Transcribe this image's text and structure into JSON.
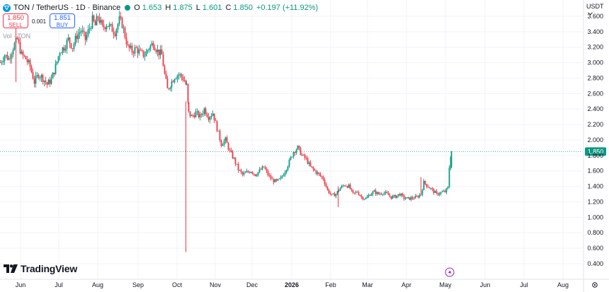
{
  "header": {
    "symbol": "TON / TetherUS · 1D · Binance",
    "open_label": "O",
    "open": "1.653",
    "high_label": "H",
    "high": "1.875",
    "low_label": "L",
    "low": "1.601",
    "close_label": "C",
    "close": "1.850",
    "change": "+0.197 (+11.92%)"
  },
  "trade": {
    "sell_price": "1.850",
    "sell_label": "SELL",
    "spread": "0.001",
    "buy_price": "1.851",
    "buy_label": "BUY"
  },
  "volume_label": "Vol · TON",
  "currency_label": "USDT",
  "brand": "TradingView",
  "colors": {
    "up": "#089981",
    "down": "#f23645",
    "grid": "#f0f3fa",
    "last_price": "#089981"
  },
  "chart_data": {
    "type": "candlestick",
    "title": "TON / TetherUS · 1D · Binance",
    "ylim": [
      0.3,
      3.7
    ],
    "yticks": [
      3.6,
      3.4,
      3.2,
      3.0,
      2.8,
      2.6,
      2.4,
      2.2,
      2.0,
      1.8,
      1.6,
      1.4,
      1.2,
      1.0,
      0.8,
      0.6,
      0.4
    ],
    "ytick_labels": [
      "3.600",
      "3.400",
      "3.200",
      "3.000",
      "2.800",
      "2.600",
      "2.400",
      "2.200",
      "2.000",
      "1.800",
      "1.600",
      "1.400",
      "1.200",
      "1.000",
      "0.800",
      "0.600",
      "0.400"
    ],
    "xticks": [
      "Jun",
      "Jul",
      "Aug",
      "Sep",
      "Oct",
      "Nov",
      "Dec",
      "2026",
      "Feb",
      "Mar",
      "Apr",
      "May",
      "Jun",
      "Jul",
      "Aug"
    ],
    "last_price": 1.85,
    "last_price_label": "1.850",
    "anchors": [
      [
        0,
        3.0
      ],
      [
        6,
        3.1
      ],
      [
        12,
        3.05
      ],
      [
        18,
        3.2
      ],
      [
        24,
        3.3
      ],
      [
        30,
        3.1
      ],
      [
        36,
        3.05
      ],
      [
        42,
        2.95
      ],
      [
        48,
        2.75
      ],
      [
        54,
        2.85
      ],
      [
        60,
        2.8
      ],
      [
        66,
        2.72
      ],
      [
        72,
        2.78
      ],
      [
        78,
        2.95
      ],
      [
        84,
        3.15
      ],
      [
        90,
        3.2
      ],
      [
        96,
        3.3
      ],
      [
        102,
        3.2
      ],
      [
        108,
        3.35
      ],
      [
        114,
        3.42
      ],
      [
        120,
        3.3
      ],
      [
        126,
        3.45
      ],
      [
        130,
        3.55
      ],
      [
        134,
        3.48
      ],
      [
        138,
        3.6
      ],
      [
        144,
        3.45
      ],
      [
        150,
        3.5
      ],
      [
        156,
        3.45
      ],
      [
        162,
        3.4
      ],
      [
        168,
        3.55
      ],
      [
        172,
        3.5
      ],
      [
        176,
        3.35
      ],
      [
        180,
        3.2
      ],
      [
        186,
        3.15
      ],
      [
        192,
        3.18
      ],
      [
        198,
        3.12
      ],
      [
        204,
        3.1
      ],
      [
        210,
        3.2
      ],
      [
        216,
        3.25
      ],
      [
        222,
        3.15
      ],
      [
        228,
        3.1
      ],
      [
        232,
        2.85
      ],
      [
        236,
        2.65
      ],
      [
        240,
        2.72
      ],
      [
        246,
        2.82
      ],
      [
        252,
        2.85
      ],
      [
        258,
        2.8
      ],
      [
        263,
        2.7
      ],
      [
        266,
        2.35
      ],
      [
        270,
        2.3
      ],
      [
        276,
        2.35
      ],
      [
        282,
        2.3
      ],
      [
        288,
        2.4
      ],
      [
        294,
        2.3
      ],
      [
        300,
        2.35
      ],
      [
        306,
        2.15
      ],
      [
        312,
        1.95
      ],
      [
        318,
        2.0
      ],
      [
        324,
        1.85
      ],
      [
        330,
        1.75
      ],
      [
        336,
        1.62
      ],
      [
        342,
        1.55
      ],
      [
        348,
        1.58
      ],
      [
        354,
        1.6
      ],
      [
        360,
        1.55
      ],
      [
        366,
        1.6
      ],
      [
        372,
        1.65
      ],
      [
        378,
        1.55
      ],
      [
        384,
        1.48
      ],
      [
        390,
        1.46
      ],
      [
        396,
        1.5
      ],
      [
        402,
        1.6
      ],
      [
        408,
        1.72
      ],
      [
        414,
        1.85
      ],
      [
        420,
        1.9
      ],
      [
        426,
        1.8
      ],
      [
        432,
        1.75
      ],
      [
        438,
        1.65
      ],
      [
        444,
        1.6
      ],
      [
        450,
        1.55
      ],
      [
        456,
        1.5
      ],
      [
        462,
        1.35
      ],
      [
        468,
        1.28
      ],
      [
        474,
        1.3
      ],
      [
        480,
        1.38
      ],
      [
        486,
        1.42
      ],
      [
        492,
        1.4
      ],
      [
        498,
        1.3
      ],
      [
        504,
        1.33
      ],
      [
        510,
        1.26
      ],
      [
        516,
        1.24
      ],
      [
        522,
        1.3
      ],
      [
        528,
        1.33
      ],
      [
        534,
        1.3
      ],
      [
        540,
        1.32
      ],
      [
        546,
        1.3
      ],
      [
        552,
        1.26
      ],
      [
        558,
        1.27
      ],
      [
        564,
        1.3
      ],
      [
        570,
        1.25
      ],
      [
        576,
        1.24
      ],
      [
        582,
        1.25
      ],
      [
        588,
        1.26
      ],
      [
        594,
        1.3
      ],
      [
        598,
        1.45
      ],
      [
        604,
        1.4
      ],
      [
        610,
        1.35
      ],
      [
        616,
        1.3
      ],
      [
        622,
        1.32
      ],
      [
        628,
        1.33
      ],
      [
        632,
        1.38
      ],
      [
        634,
        1.65
      ],
      [
        637,
        1.85
      ]
    ],
    "wick_events": [
      {
        "x": 262,
        "low": 0.55,
        "high": 2.5
      },
      {
        "x": 22,
        "low": 2.75,
        "high": 3.5
      },
      {
        "x": 477,
        "low": 1.13,
        "high": 1.4
      },
      {
        "x": 594,
        "low": 1.28,
        "high": 1.52
      }
    ]
  }
}
